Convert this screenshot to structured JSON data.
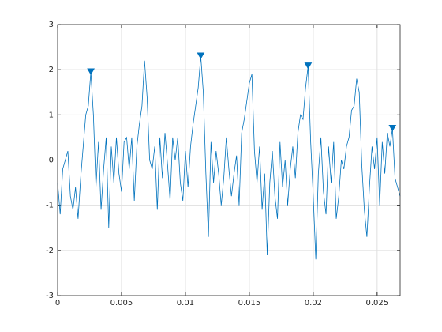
{
  "chart_data": {
    "type": "line",
    "xlim": [
      0,
      0.0268
    ],
    "ylim": [
      -3,
      3
    ],
    "xticks": [
      0,
      0.005,
      0.01,
      0.015,
      0.02,
      0.025
    ],
    "yticks": [
      -3,
      -2,
      -1,
      0,
      1,
      2,
      3
    ],
    "grid": true,
    "series": [
      {
        "style": "line",
        "color": "#0072bd",
        "x": [
          0,
          0.0002,
          0.0004,
          0.0006,
          0.0008,
          0.001,
          0.0012,
          0.0014,
          0.0016,
          0.0018,
          0.002,
          0.0022,
          0.0024,
          0.0026,
          0.0028,
          0.003,
          0.0032,
          0.0034,
          0.0036,
          0.0038,
          0.004,
          0.0042,
          0.0044,
          0.0046,
          0.0048,
          0.005,
          0.0052,
          0.0054,
          0.0056,
          0.0058,
          0.006,
          0.0062,
          0.0064,
          0.0066,
          0.0068,
          0.007,
          0.0072,
          0.0074,
          0.0076,
          0.0078,
          0.008,
          0.0082,
          0.0084,
          0.0086,
          0.0088,
          0.009,
          0.0092,
          0.0094,
          0.0096,
          0.0098,
          0.01,
          0.0102,
          0.0104,
          0.0106,
          0.0108,
          0.011,
          0.0112,
          0.0114,
          0.0116,
          0.0118,
          0.012,
          0.0122,
          0.0124,
          0.0126,
          0.0128,
          0.013,
          0.0132,
          0.0134,
          0.0136,
          0.0138,
          0.014,
          0.0142,
          0.0144,
          0.0146,
          0.0148,
          0.015,
          0.0152,
          0.0154,
          0.0156,
          0.0158,
          0.016,
          0.0162,
          0.0164,
          0.0166,
          0.0168,
          0.017,
          0.0172,
          0.0174,
          0.0176,
          0.0178,
          0.018,
          0.0182,
          0.0184,
          0.0186,
          0.0188,
          0.019,
          0.0192,
          0.0194,
          0.0196,
          0.0198,
          0.02,
          0.0202,
          0.0204,
          0.0206,
          0.0208,
          0.021,
          0.0212,
          0.0214,
          0.0216,
          0.0218,
          0.022,
          0.0222,
          0.0224,
          0.0226,
          0.0228,
          0.023,
          0.0232,
          0.0234,
          0.0236,
          0.0238,
          0.024,
          0.0242,
          0.0244,
          0.0246,
          0.0248,
          0.025,
          0.0252,
          0.0254,
          0.0256,
          0.0258,
          0.026,
          0.0262,
          0.0264,
          0.0266,
          0.0268
        ],
        "values": [
          -0.5,
          -1.2,
          -0.2,
          0.0,
          0.2,
          -0.8,
          -1.1,
          -0.6,
          -1.3,
          -0.4,
          0.3,
          1.0,
          1.2,
          1.95,
          1.0,
          -0.6,
          0.4,
          -1.1,
          -0.2,
          0.5,
          -1.5,
          0.3,
          -0.5,
          0.5,
          -0.3,
          -0.7,
          0.4,
          0.5,
          -0.2,
          0.5,
          -0.9,
          0.3,
          0.8,
          1.2,
          2.2,
          1.4,
          0.0,
          -0.2,
          0.3,
          -1.1,
          0.5,
          -0.4,
          0.6,
          -0.1,
          -0.9,
          0.5,
          0.0,
          0.5,
          -0.5,
          -0.9,
          0.2,
          -0.6,
          0.3,
          0.8,
          1.2,
          1.6,
          2.3,
          1.5,
          -0.3,
          -1.7,
          0.4,
          -0.5,
          0.2,
          -0.3,
          -1.0,
          -0.4,
          0.5,
          -0.2,
          -0.8,
          -0.3,
          0.1,
          -1.0,
          0.6,
          0.9,
          1.3,
          1.7,
          1.9,
          0.2,
          -0.5,
          0.3,
          -1.1,
          -0.3,
          -2.1,
          -0.5,
          0.2,
          -0.8,
          -1.3,
          0.4,
          -0.6,
          0.0,
          -1.0,
          -0.2,
          0.3,
          -0.4,
          0.6,
          1.0,
          0.9,
          1.6,
          2.08,
          0.4,
          -0.8,
          -2.2,
          -0.3,
          0.5,
          -0.7,
          -1.2,
          0.3,
          -0.5,
          0.4,
          -1.3,
          -0.8,
          0.0,
          -0.2,
          0.3,
          0.5,
          1.1,
          1.2,
          1.8,
          1.5,
          -0.1,
          -1.1,
          -1.7,
          -0.6,
          0.3,
          -0.2,
          0.5,
          -1.0,
          0.4,
          -0.3,
          0.6,
          0.3,
          0.7,
          -0.4,
          -0.6,
          -0.8
        ]
      },
      {
        "style": "marker",
        "color": "#0072bd",
        "x": [
          0.0026,
          0.0112,
          0.0196,
          0.0262
        ],
        "values": [
          1.95,
          2.3,
          2.08,
          0.7
        ]
      }
    ]
  }
}
